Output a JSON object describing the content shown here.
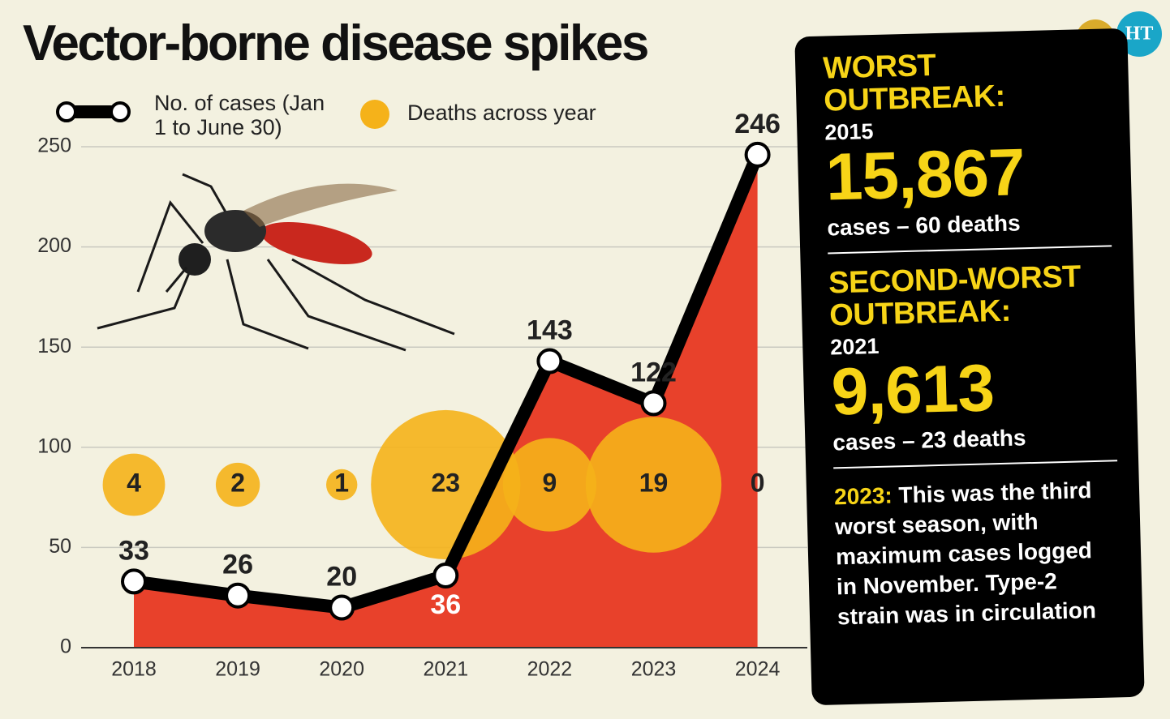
{
  "chart_data": {
    "type": "line",
    "title": "Vector-borne disease spikes",
    "categories": [
      "2018",
      "2019",
      "2020",
      "2021",
      "2022",
      "2023",
      "2024"
    ],
    "series": [
      {
        "name": "No. of cases (Jan 1 to June 30)",
        "color": "#000000",
        "fill": "#e8412b",
        "values": [
          33,
          26,
          20,
          36,
          143,
          122,
          246
        ]
      },
      {
        "name": "Deaths across year",
        "type": "bubble",
        "color": "#f5b21a",
        "values": [
          4,
          2,
          1,
          23,
          9,
          19,
          0
        ]
      }
    ],
    "ylim": [
      0,
      250
    ],
    "yticks": [
      0,
      50,
      100,
      150,
      200,
      250
    ],
    "grid": true
  },
  "panel": {
    "sections": [
      {
        "heading": "WORST OUTBREAK:",
        "year": "2015",
        "figure": "15,867",
        "detail": "cases – 60 deaths"
      },
      {
        "heading": "SECOND-WORST OUTBREAK:",
        "year": "2021",
        "figure": "9,613",
        "detail": "cases – 23 deaths"
      }
    ],
    "note": {
      "lead": "2023:",
      "text": "This was the third worst season, with maximum cases logged in November. Type-2 strain was in circulation"
    }
  },
  "logo": "HT"
}
